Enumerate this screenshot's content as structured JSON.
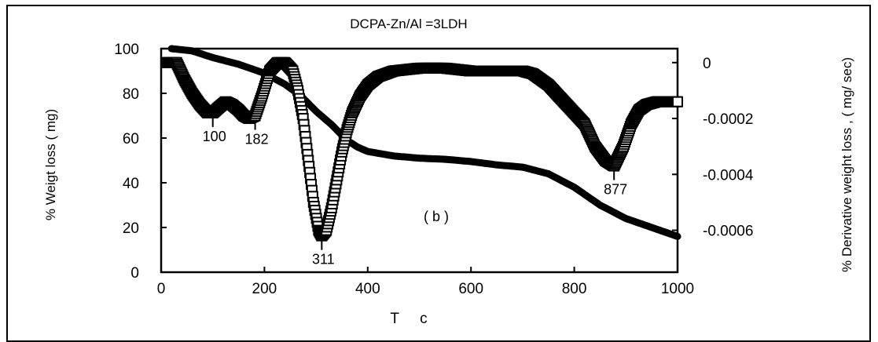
{
  "chart_data": {
    "type": "line",
    "title": "DCPA-Zn/Al =3LDH",
    "xlabel": "T     c",
    "ylabel_left": "% Weigt  loss ( mg)",
    "ylabel_right": "% Derivative weight loss , ( mg/ sec)",
    "panel_label": "( b )",
    "xlim": [
      0,
      1000
    ],
    "ylim_left": [
      0,
      100
    ],
    "ylim_right": [
      -0.00075,
      5e-05
    ],
    "x_ticks": [
      "0",
      "200",
      "400",
      "600",
      "800",
      "1000"
    ],
    "y_ticks_left": [
      "0",
      "20",
      "40",
      "60",
      "80",
      "100"
    ],
    "y_ticks_right": [
      "0",
      "-0.0002",
      "-0.0004",
      "-0.0006"
    ],
    "series": [
      {
        "axis": "left",
        "style": "line",
        "x": [
          20,
          60,
          100,
          150,
          200,
          240,
          270,
          300,
          330,
          360,
          380,
          400,
          450,
          500,
          550,
          600,
          650,
          700,
          750,
          800,
          850,
          900,
          950,
          1000
        ],
        "y": [
          100,
          99,
          96,
          93,
          89,
          84,
          79,
          72,
          66,
          59,
          56,
          54,
          52,
          51,
          50.5,
          49.5,
          48,
          47,
          44,
          38,
          30,
          24,
          20,
          16
        ]
      },
      {
        "axis": "right",
        "style": "markers",
        "x": [
          10,
          30,
          45,
          60,
          75,
          90,
          100,
          112,
          125,
          137,
          150,
          160,
          170,
          182,
          195,
          210,
          225,
          240,
          255,
          265,
          275,
          285,
          295,
          305,
          311,
          320,
          330,
          340,
          350,
          360,
          370,
          385,
          400,
          420,
          450,
          500,
          550,
          600,
          650,
          700,
          720,
          750,
          780,
          800,
          820,
          840,
          860,
          877,
          895,
          910,
          925,
          940,
          960,
          980,
          1000
        ],
        "y": [
          -0.0,
          -0.0,
          -6e-05,
          -0.00011,
          -0.00015,
          -0.00018,
          -0.00018,
          -0.00016,
          -0.00014,
          -0.00015,
          -0.00017,
          -0.00019,
          -0.0002,
          -0.00019,
          -0.00012,
          -3e-05,
          0.0,
          0.0,
          -3e-05,
          -0.0001,
          -0.0002,
          -0.00035,
          -0.0005,
          -0.0006,
          -0.00062,
          -0.0006,
          -0.00052,
          -0.00042,
          -0.00032,
          -0.00024,
          -0.00018,
          -0.00012,
          -8e-05,
          -5e-05,
          -3e-05,
          -2e-05,
          -2e-05,
          -3e-05,
          -3e-05,
          -3e-05,
          -4e-05,
          -8e-05,
          -0.00014,
          -0.00018,
          -0.00022,
          -0.0003,
          -0.00035,
          -0.00037,
          -0.0003,
          -0.00022,
          -0.00017,
          -0.00015,
          -0.00014,
          -0.00014,
          -0.00014
        ]
      }
    ],
    "annotations": [
      {
        "label": "100",
        "x": 100,
        "y_right": -0.00018
      },
      {
        "label": "182",
        "x": 182,
        "y_right": -0.00019
      },
      {
        "label": "311",
        "x": 311,
        "y_right": -0.00062
      },
      {
        "label": "877",
        "x": 877,
        "y_right": -0.00037
      }
    ]
  }
}
